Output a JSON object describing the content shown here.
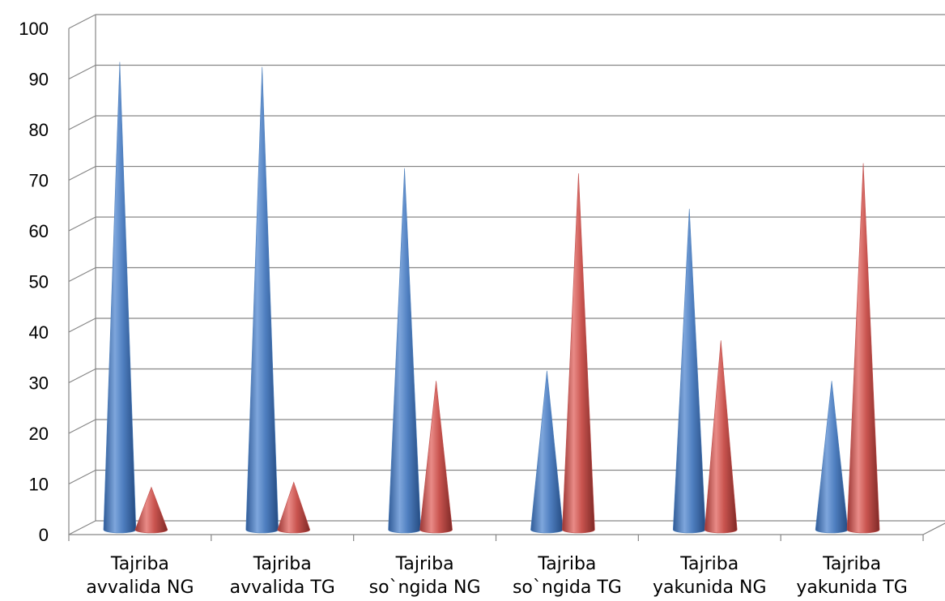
{
  "chart_data": {
    "type": "bar",
    "style": "3d-cone",
    "categories": [
      [
        "Tajriba",
        "avvalida NG"
      ],
      [
        "Tajriba",
        "avvalida TG"
      ],
      [
        "Tajriba",
        "so`ngida NG"
      ],
      [
        "Tajriba",
        "so`ngida TG"
      ],
      [
        "Tajriba",
        "yakunida NG"
      ],
      [
        "Tajriba",
        "yakunida TG"
      ]
    ],
    "series": [
      {
        "color": "#4f81bd",
        "values": [
          92,
          91,
          71,
          31,
          63,
          29
        ]
      },
      {
        "color": "#c0504d",
        "values": [
          8,
          9,
          29,
          70,
          37,
          72
        ]
      }
    ],
    "ylim": [
      0,
      100
    ],
    "yticks": [
      0,
      10,
      20,
      30,
      40,
      50,
      60,
      70,
      80,
      90,
      100
    ],
    "grid": true,
    "legend": "none",
    "title": "",
    "xlabel": "",
    "ylabel": ""
  }
}
